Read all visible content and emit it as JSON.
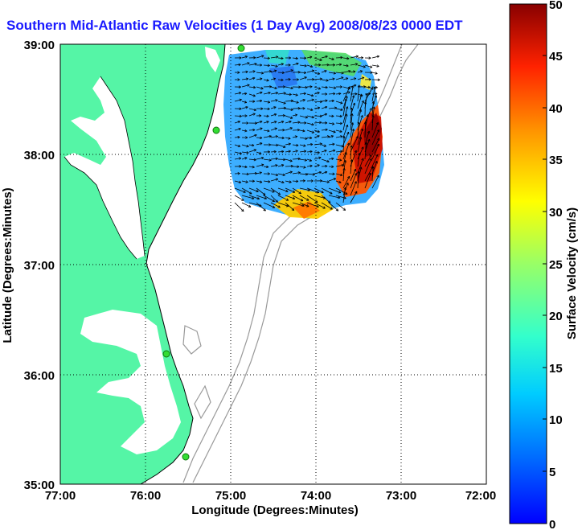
{
  "title": "Southern Mid-Atlantic Raw Velocities (1 Day Avg) 2008/08/23 0000 EDT",
  "map": {
    "x_axis_label": "Longitude (Degrees:Minutes)",
    "y_axis_label": "Latitude (Degrees:Minutes)",
    "lon_ticks": [
      "77:00",
      "76:00",
      "75:00",
      "74:00",
      "73:00",
      "72:00"
    ],
    "lat_ticks": [
      "39:00",
      "38:00",
      "37:00",
      "36:00",
      "35:00"
    ],
    "lon_range_deg": [
      -77,
      -72
    ],
    "lat_range_deg": [
      35,
      39
    ],
    "grid": "dotted",
    "land_color": "#55f5a6",
    "ocean_color": "#ffffff",
    "bathymetry_contour_color": "#999999",
    "station_marker_color": "#33dd33"
  },
  "colorbar": {
    "label": "Surface Velocity (cm/s)",
    "ticks": [
      "0",
      "5",
      "10",
      "15",
      "20",
      "25",
      "30",
      "35",
      "40",
      "45",
      "50"
    ],
    "range": [
      0,
      50
    ],
    "colormap": "jet"
  },
  "velocity_field": {
    "description_level": "approximate",
    "cells": [
      {
        "lon": -74.95,
        "lat": 38.75,
        "speed": 10
      },
      {
        "lon": -74.5,
        "lat": 38.75,
        "speed": 7
      },
      {
        "lon": -74.0,
        "lat": 38.8,
        "speed": 9
      },
      {
        "lon": -73.65,
        "lat": 38.7,
        "speed": 22
      },
      {
        "lon": -74.9,
        "lat": 38.35,
        "speed": 8
      },
      {
        "lon": -74.4,
        "lat": 38.35,
        "speed": 6
      },
      {
        "lon": -73.95,
        "lat": 38.35,
        "speed": 12
      },
      {
        "lon": -73.45,
        "lat": 38.3,
        "speed": 44
      },
      {
        "lon": -74.85,
        "lat": 38.0,
        "speed": 9
      },
      {
        "lon": -74.35,
        "lat": 38.0,
        "speed": 13
      },
      {
        "lon": -73.8,
        "lat": 37.95,
        "speed": 38
      },
      {
        "lon": -74.2,
        "lat": 37.6,
        "speed": 32
      }
    ]
  },
  "stations": [
    {
      "lon": -74.88,
      "lat": 38.95
    },
    {
      "lon": -75.15,
      "lat": 38.22
    },
    {
      "lon": -75.57,
      "lat": 36.2
    },
    {
      "lon": -75.52,
      "lat": 35.27
    }
  ]
}
